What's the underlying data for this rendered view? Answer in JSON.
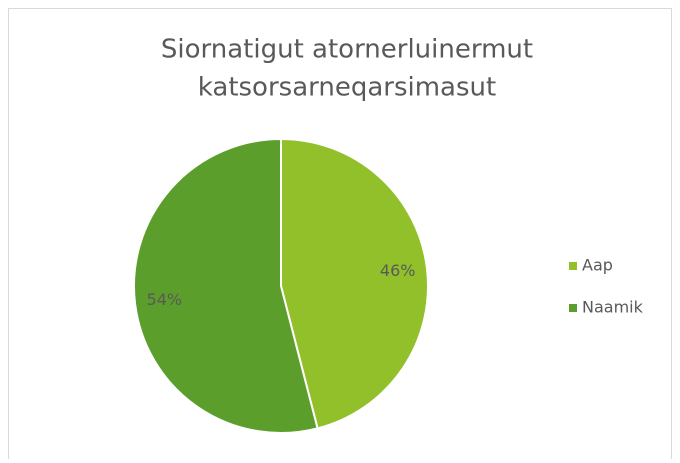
{
  "chart_data": {
    "type": "pie",
    "title": [
      "Siornatigut atornerluinermut",
      "katsorsarneqarsimasut"
    ],
    "categories": [
      "Aap",
      "Naamik"
    ],
    "values": [
      46,
      54
    ],
    "value_labels": [
      "46%",
      "54%"
    ],
    "colors": [
      "#92c02a",
      "#5c9e2b"
    ],
    "legend": "right"
  }
}
